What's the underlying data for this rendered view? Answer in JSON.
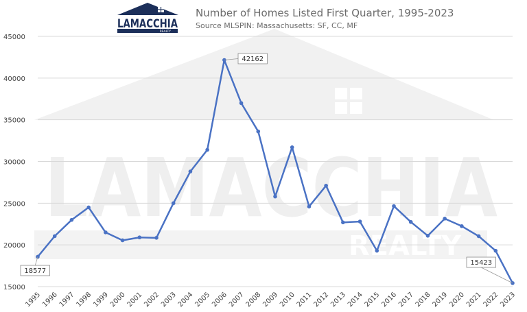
{
  "header": {
    "logo_text": "LAMACCHIA",
    "logo_subtext": "REALTY",
    "title": "Number of Homes Listed First Quarter, 1995-2023",
    "subtitle": "Source MLSPIN: Massachusetts: SF, CC, MF"
  },
  "watermark": {
    "main_text": "LAMACCHIA",
    "sub_text": "REALTY"
  },
  "colors": {
    "line": "#4a72c4",
    "grid": "#d9d9d9",
    "logo_navy": "#1c2f5a",
    "watermark": "#ececec"
  },
  "chart_data": {
    "type": "line",
    "title": "Number of Homes Listed First Quarter, 1995-2023",
    "subtitle": "Source MLSPIN: Massachusetts: SF, CC, MF",
    "xlabel": "",
    "ylabel": "",
    "ylim": [
      15000,
      45000
    ],
    "yticks": [
      15000,
      20000,
      25000,
      30000,
      35000,
      40000,
      45000
    ],
    "grid": true,
    "legend": "none",
    "x": [
      "1995",
      "1996",
      "1997",
      "1998",
      "1999",
      "2000",
      "2001",
      "2002",
      "2003",
      "2004",
      "2005",
      "2006",
      "2007",
      "2008",
      "2009",
      "2010",
      "2011",
      "2012",
      "2013",
      "2014",
      "2015",
      "2016",
      "2017",
      "2018",
      "2019",
      "2020",
      "2021",
      "2022",
      "2023"
    ],
    "series": [
      {
        "values": [
          18577,
          21050,
          23000,
          24500,
          21500,
          20550,
          20900,
          20850,
          25000,
          28800,
          31400,
          42162,
          37000,
          33600,
          25800,
          31700,
          24600,
          27100,
          22700,
          22800,
          19300,
          24650,
          22750,
          21100,
          23150,
          22250,
          21050,
          19300,
          15423
        ]
      }
    ],
    "annotations": [
      {
        "x": "1995",
        "label": "18577"
      },
      {
        "x": "2006",
        "label": "42162"
      },
      {
        "x": "2023",
        "label": "15423"
      }
    ]
  }
}
